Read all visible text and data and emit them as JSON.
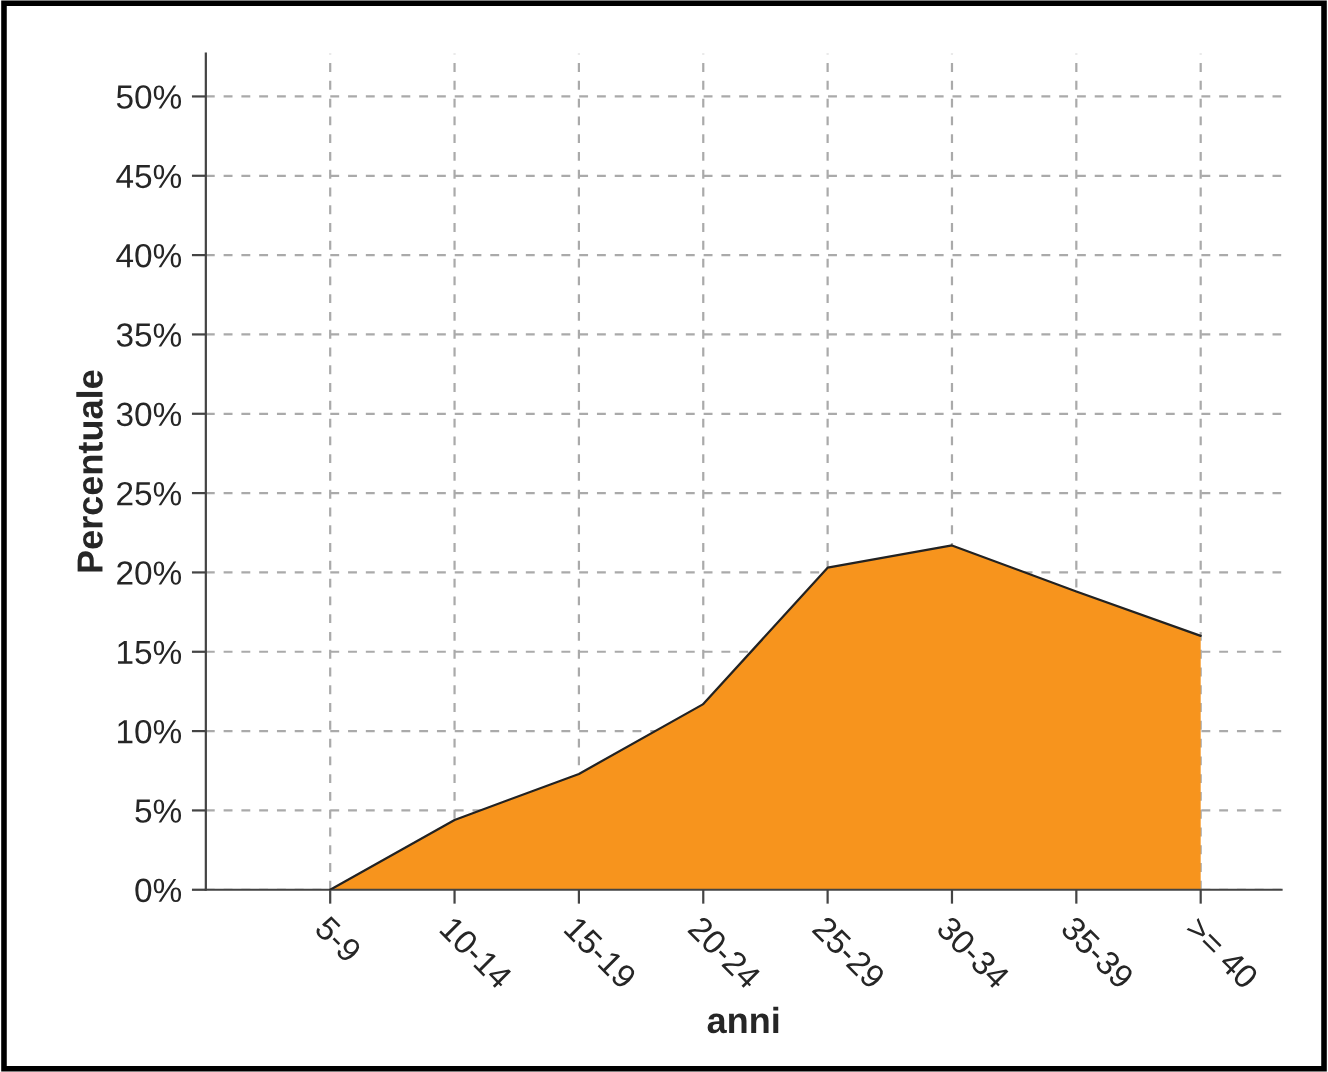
{
  "chart_data": {
    "type": "area",
    "xlabel": "anni",
    "ylabel": "Percentuale",
    "categories": [
      "5-9",
      "10-14",
      "15-19",
      "20-24",
      "25-29",
      "30-34",
      "35-39",
      ">= 40"
    ],
    "series": [
      {
        "color": "#f7941d",
        "values": [
          0,
          4.4,
          7.3,
          11.7,
          20.3,
          21.7,
          18.8,
          16.0
        ]
      }
    ],
    "ylim": [
      0,
      52.7
    ],
    "yticks": [
      {
        "value": 0,
        "label": "0%"
      },
      {
        "value": 5,
        "label": "5%"
      },
      {
        "value": 10,
        "label": "10%"
      },
      {
        "value": 15,
        "label": "15%"
      },
      {
        "value": 20,
        "label": "20%"
      },
      {
        "value": 25,
        "label": "25%"
      },
      {
        "value": 30,
        "label": "30%"
      },
      {
        "value": 35,
        "label": "35%"
      },
      {
        "value": 40,
        "label": "40%"
      },
      {
        "value": 45,
        "label": "45%"
      },
      {
        "value": 50,
        "label": "50%"
      }
    ],
    "grid": true
  }
}
